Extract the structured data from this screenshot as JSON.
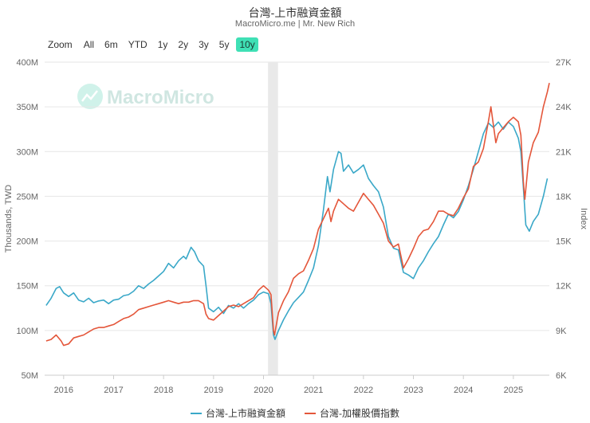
{
  "header": {
    "title": "台灣-上市融資金額",
    "subtitle": "MacroMicro.me | Mr. New Rich"
  },
  "zoom": {
    "label": "Zoom",
    "buttons": [
      "All",
      "6m",
      "YTD",
      "1y",
      "2y",
      "3y",
      "5y",
      "10y"
    ],
    "active": "10y"
  },
  "watermark": {
    "text": "MacroMicro"
  },
  "legend": [
    {
      "label": "台灣-上市融資金額",
      "color": "#3aa8c8"
    },
    {
      "label": "台灣-加權股價指數",
      "color": "#e4563a"
    }
  ],
  "chart_data": {
    "type": "line",
    "title": "台灣-上市融資金額",
    "left_axis": {
      "label": "Thousands, TWD",
      "range": [
        50,
        400
      ],
      "ticks": [
        "50M",
        "100M",
        "150M",
        "200M",
        "250M",
        "300M",
        "350M",
        "400M"
      ]
    },
    "right_axis": {
      "label": "Index",
      "range": [
        6000,
        27000
      ],
      "ticks": [
        "6K",
        "9K",
        "12K",
        "15K",
        "18K",
        "21K",
        "24K",
        "27K"
      ]
    },
    "x_axis": {
      "range": [
        2015.62,
        2025.72
      ],
      "ticks": [
        "2016",
        "2017",
        "2018",
        "2019",
        "2020",
        "2021",
        "2022",
        "2023",
        "2024",
        "2025"
      ]
    },
    "recession_band": {
      "start": 2020.09,
      "end": 2020.29
    },
    "series": [
      {
        "name": "台灣-上市融資金額",
        "axis": "left",
        "color": "#3aa8c8",
        "points": [
          [
            2015.65,
            128
          ],
          [
            2015.75,
            136
          ],
          [
            2015.85,
            147
          ],
          [
            2015.92,
            149
          ],
          [
            2016.0,
            142
          ],
          [
            2016.1,
            138
          ],
          [
            2016.2,
            142
          ],
          [
            2016.3,
            134
          ],
          [
            2016.4,
            132
          ],
          [
            2016.5,
            136
          ],
          [
            2016.6,
            131
          ],
          [
            2016.7,
            133
          ],
          [
            2016.8,
            134
          ],
          [
            2016.9,
            130
          ],
          [
            2017.0,
            134
          ],
          [
            2017.1,
            135
          ],
          [
            2017.2,
            139
          ],
          [
            2017.3,
            140
          ],
          [
            2017.4,
            144
          ],
          [
            2017.5,
            150
          ],
          [
            2017.6,
            147
          ],
          [
            2017.7,
            152
          ],
          [
            2017.8,
            156
          ],
          [
            2017.9,
            161
          ],
          [
            2018.0,
            166
          ],
          [
            2018.1,
            175
          ],
          [
            2018.2,
            170
          ],
          [
            2018.3,
            178
          ],
          [
            2018.4,
            183
          ],
          [
            2018.45,
            180
          ],
          [
            2018.55,
            193
          ],
          [
            2018.62,
            188
          ],
          [
            2018.7,
            178
          ],
          [
            2018.8,
            172
          ],
          [
            2018.85,
            150
          ],
          [
            2018.9,
            125
          ],
          [
            2019.0,
            121
          ],
          [
            2019.1,
            126
          ],
          [
            2019.2,
            119
          ],
          [
            2019.3,
            128
          ],
          [
            2019.4,
            125
          ],
          [
            2019.5,
            130
          ],
          [
            2019.6,
            125
          ],
          [
            2019.7,
            130
          ],
          [
            2019.8,
            134
          ],
          [
            2019.9,
            140
          ],
          [
            2020.0,
            143
          ],
          [
            2020.1,
            141
          ],
          [
            2020.15,
            130
          ],
          [
            2020.2,
            95
          ],
          [
            2020.23,
            90
          ],
          [
            2020.3,
            100
          ],
          [
            2020.4,
            112
          ],
          [
            2020.5,
            122
          ],
          [
            2020.6,
            131
          ],
          [
            2020.7,
            137
          ],
          [
            2020.8,
            143
          ],
          [
            2020.9,
            156
          ],
          [
            2021.0,
            170
          ],
          [
            2021.1,
            195
          ],
          [
            2021.2,
            235
          ],
          [
            2021.28,
            272
          ],
          [
            2021.33,
            255
          ],
          [
            2021.4,
            280
          ],
          [
            2021.5,
            300
          ],
          [
            2021.55,
            298
          ],
          [
            2021.6,
            278
          ],
          [
            2021.7,
            285
          ],
          [
            2021.8,
            276
          ],
          [
            2021.9,
            280
          ],
          [
            2022.0,
            285
          ],
          [
            2022.1,
            270
          ],
          [
            2022.2,
            262
          ],
          [
            2022.3,
            255
          ],
          [
            2022.4,
            238
          ],
          [
            2022.5,
            205
          ],
          [
            2022.6,
            192
          ],
          [
            2022.7,
            190
          ],
          [
            2022.8,
            165
          ],
          [
            2022.9,
            162
          ],
          [
            2023.0,
            158
          ],
          [
            2023.1,
            170
          ],
          [
            2023.2,
            178
          ],
          [
            2023.3,
            188
          ],
          [
            2023.4,
            197
          ],
          [
            2023.5,
            205
          ],
          [
            2023.6,
            218
          ],
          [
            2023.7,
            230
          ],
          [
            2023.8,
            226
          ],
          [
            2023.9,
            233
          ],
          [
            2024.0,
            246
          ],
          [
            2024.1,
            262
          ],
          [
            2024.2,
            280
          ],
          [
            2024.3,
            300
          ],
          [
            2024.4,
            320
          ],
          [
            2024.5,
            332
          ],
          [
            2024.6,
            327
          ],
          [
            2024.7,
            333
          ],
          [
            2024.8,
            325
          ],
          [
            2024.9,
            333
          ],
          [
            2025.0,
            328
          ],
          [
            2025.1,
            315
          ],
          [
            2025.15,
            300
          ],
          [
            2025.2,
            260
          ],
          [
            2025.25,
            218
          ],
          [
            2025.32,
            211
          ],
          [
            2025.4,
            222
          ],
          [
            2025.5,
            230
          ],
          [
            2025.6,
            250
          ],
          [
            2025.68,
            270
          ]
        ]
      },
      {
        "name": "台灣-加權股價指數",
        "axis": "right",
        "color": "#e4563a",
        "points": [
          [
            2015.65,
            8300
          ],
          [
            2015.75,
            8400
          ],
          [
            2015.85,
            8700
          ],
          [
            2015.95,
            8300
          ],
          [
            2016.0,
            8000
          ],
          [
            2016.1,
            8100
          ],
          [
            2016.2,
            8500
          ],
          [
            2016.3,
            8600
          ],
          [
            2016.4,
            8700
          ],
          [
            2016.5,
            8900
          ],
          [
            2016.6,
            9100
          ],
          [
            2016.7,
            9200
          ],
          [
            2016.8,
            9200
          ],
          [
            2016.9,
            9300
          ],
          [
            2017.0,
            9400
          ],
          [
            2017.1,
            9600
          ],
          [
            2017.2,
            9800
          ],
          [
            2017.3,
            9900
          ],
          [
            2017.4,
            10100
          ],
          [
            2017.5,
            10400
          ],
          [
            2017.6,
            10500
          ],
          [
            2017.7,
            10600
          ],
          [
            2017.8,
            10700
          ],
          [
            2017.9,
            10800
          ],
          [
            2018.0,
            10900
          ],
          [
            2018.1,
            11000
          ],
          [
            2018.2,
            10900
          ],
          [
            2018.3,
            10800
          ],
          [
            2018.4,
            10900
          ],
          [
            2018.5,
            10900
          ],
          [
            2018.6,
            11000
          ],
          [
            2018.7,
            11000
          ],
          [
            2018.8,
            10800
          ],
          [
            2018.85,
            10100
          ],
          [
            2018.9,
            9800
          ],
          [
            2019.0,
            9700
          ],
          [
            2019.1,
            10000
          ],
          [
            2019.2,
            10300
          ],
          [
            2019.3,
            10600
          ],
          [
            2019.4,
            10700
          ],
          [
            2019.5,
            10600
          ],
          [
            2019.6,
            10800
          ],
          [
            2019.7,
            11000
          ],
          [
            2019.8,
            11200
          ],
          [
            2019.9,
            11700
          ],
          [
            2020.0,
            12000
          ],
          [
            2020.1,
            11700
          ],
          [
            2020.15,
            11400
          ],
          [
            2020.2,
            9000
          ],
          [
            2020.22,
            8700
          ],
          [
            2020.3,
            10200
          ],
          [
            2020.4,
            11000
          ],
          [
            2020.5,
            11600
          ],
          [
            2020.6,
            12500
          ],
          [
            2020.7,
            12800
          ],
          [
            2020.8,
            13000
          ],
          [
            2020.9,
            13700
          ],
          [
            2021.0,
            14500
          ],
          [
            2021.1,
            15800
          ],
          [
            2021.2,
            16500
          ],
          [
            2021.3,
            17200
          ],
          [
            2021.35,
            16300
          ],
          [
            2021.4,
            17000
          ],
          [
            2021.5,
            17800
          ],
          [
            2021.6,
            17500
          ],
          [
            2021.7,
            17200
          ],
          [
            2021.8,
            17000
          ],
          [
            2021.9,
            17600
          ],
          [
            2022.0,
            18200
          ],
          [
            2022.1,
            17800
          ],
          [
            2022.2,
            17400
          ],
          [
            2022.3,
            16800
          ],
          [
            2022.4,
            16200
          ],
          [
            2022.5,
            15000
          ],
          [
            2022.6,
            14600
          ],
          [
            2022.7,
            14800
          ],
          [
            2022.8,
            13200
          ],
          [
            2022.9,
            13800
          ],
          [
            2023.0,
            14500
          ],
          [
            2023.1,
            15300
          ],
          [
            2023.2,
            15700
          ],
          [
            2023.3,
            15800
          ],
          [
            2023.4,
            16300
          ],
          [
            2023.5,
            17000
          ],
          [
            2023.6,
            17000
          ],
          [
            2023.7,
            16800
          ],
          [
            2023.8,
            16700
          ],
          [
            2023.9,
            17200
          ],
          [
            2024.0,
            17900
          ],
          [
            2024.1,
            18500
          ],
          [
            2024.2,
            20000
          ],
          [
            2024.3,
            20300
          ],
          [
            2024.4,
            21200
          ],
          [
            2024.5,
            23000
          ],
          [
            2024.55,
            24000
          ],
          [
            2024.6,
            22800
          ],
          [
            2024.65,
            21600
          ],
          [
            2024.7,
            22200
          ],
          [
            2024.8,
            22600
          ],
          [
            2024.9,
            23000
          ],
          [
            2025.0,
            23300
          ],
          [
            2025.1,
            23000
          ],
          [
            2025.15,
            22100
          ],
          [
            2025.2,
            19000
          ],
          [
            2025.23,
            17800
          ],
          [
            2025.3,
            20300
          ],
          [
            2025.4,
            21600
          ],
          [
            2025.5,
            22300
          ],
          [
            2025.6,
            24000
          ],
          [
            2025.68,
            25000
          ],
          [
            2025.72,
            25600
          ]
        ]
      }
    ]
  }
}
